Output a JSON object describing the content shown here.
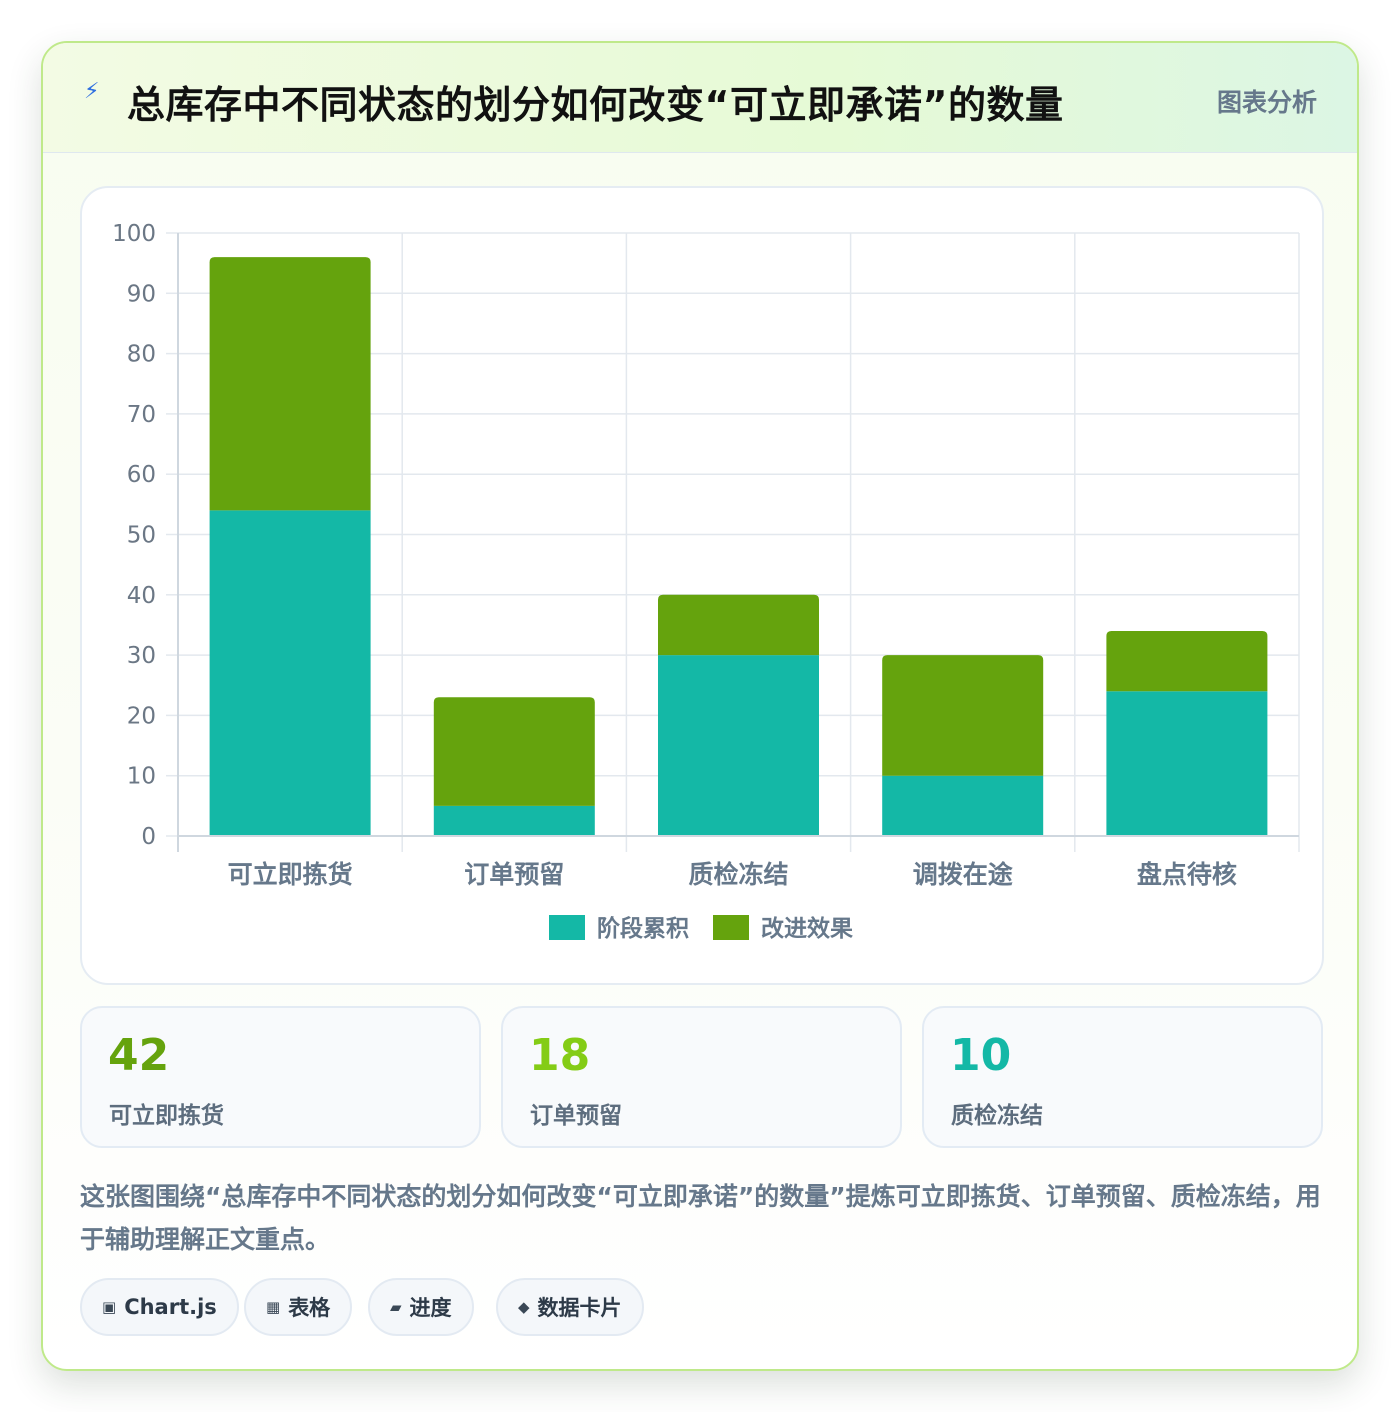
{
  "header": {
    "icon": "lightning-icon",
    "title": "总库存中不同状态的划分如何改变“可立即承诺”的数量",
    "tag": "图表分析"
  },
  "chart_data": {
    "type": "bar",
    "stacked": true,
    "categories": [
      "可立即拣货",
      "订单预留",
      "质检冻结",
      "调拨在途",
      "盘点待核"
    ],
    "series": [
      {
        "name": "阶段累积",
        "color": "#14b8a6",
        "values": [
          54,
          5,
          30,
          10,
          24
        ]
      },
      {
        "name": "改进效果",
        "color": "#65a30d",
        "values": [
          42,
          18,
          10,
          20,
          10
        ]
      }
    ],
    "ylim": [
      0,
      100
    ],
    "yticks": [
      0,
      10,
      20,
      30,
      40,
      50,
      60,
      70,
      80,
      90,
      100
    ],
    "grid": true,
    "legend_position": "bottom"
  },
  "stats": [
    {
      "value": "42",
      "label": "可立即拣货",
      "color": "#65a30d"
    },
    {
      "value": "18",
      "label": "订单预留",
      "color": "#84cc16"
    },
    {
      "value": "10",
      "label": "质检冻结",
      "color": "#14b8a6"
    }
  ],
  "description": "这张图围绕“总库存中不同状态的划分如何改变“可立即承诺”的数量”提炼可立即拣货、订单预留、质检冻结，用于辅助理解正文重点。",
  "chips": [
    {
      "icon": "chart-icon",
      "glyph": "▣",
      "label": "Chart.js"
    },
    {
      "icon": "table-icon",
      "glyph": "▦",
      "label": "表格"
    },
    {
      "icon": "progress-icon",
      "glyph": "▰",
      "label": "进度"
    },
    {
      "icon": "diamond-icon",
      "glyph": "◆",
      "label": "数据卡片"
    }
  ]
}
